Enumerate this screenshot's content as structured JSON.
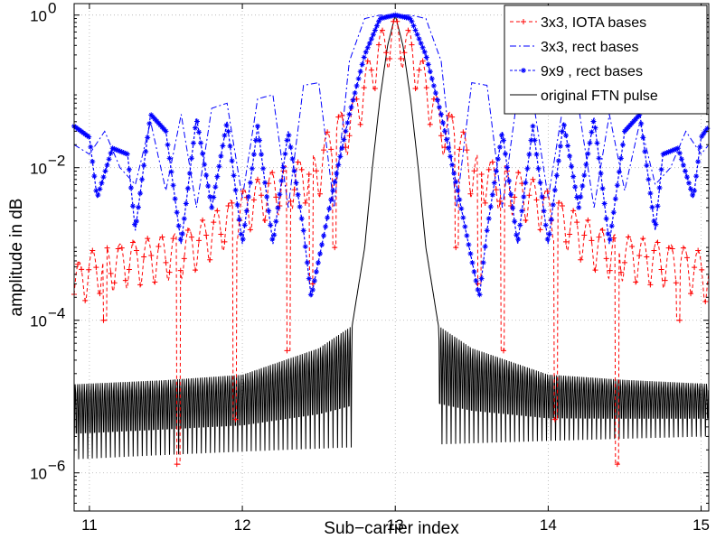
{
  "chart_data": {
    "type": "line",
    "title": "",
    "xlabel": "Sub−carrier index",
    "ylabel": "amplitude in dB",
    "xlim": [
      10.9,
      15.05
    ],
    "ylim_log10": [
      -6.5,
      0.15
    ],
    "y_scale": "log",
    "grid": true,
    "legend_position": "top-right",
    "x_ticks": [
      {
        "value": 11,
        "label": "11"
      },
      {
        "value": 12,
        "label": "12"
      },
      {
        "value": 13,
        "label": "13"
      },
      {
        "value": 14,
        "label": "14"
      },
      {
        "value": 15,
        "label": "15"
      }
    ],
    "y_ticks": [
      {
        "value": 1e-06,
        "base": "10",
        "exp": "−6"
      },
      {
        "value": 0.0001,
        "base": "10",
        "exp": "−4"
      },
      {
        "value": 0.01,
        "base": "10",
        "exp": "−2"
      },
      {
        "value": 1,
        "base": "10",
        "exp": "0"
      }
    ],
    "series": [
      {
        "name": "3x3, IOTA bases",
        "color": "#ff0000",
        "line_style": "dashed",
        "marker": "plus",
        "x": [
          10.9,
          11.0,
          11.1,
          11.2,
          11.3,
          11.4,
          11.5,
          11.6,
          11.7,
          11.8,
          11.9,
          12.0,
          12.1,
          12.2,
          12.3,
          12.4,
          12.5,
          12.6,
          12.7,
          12.8,
          12.9,
          13.0,
          13.1,
          13.2,
          13.3,
          13.4,
          13.5,
          13.6,
          13.7,
          13.8,
          13.9,
          14.0,
          14.1,
          14.2,
          14.3,
          14.4,
          14.5,
          14.6,
          14.7,
          14.8,
          14.9,
          15.0,
          15.05
        ],
        "values": [
          0.0005,
          0.0008,
          0.0009,
          0.001,
          0.0011,
          0.0012,
          0.0013,
          0.0014,
          0.0018,
          0.0025,
          0.0035,
          0.005,
          0.007,
          0.009,
          0.011,
          0.013,
          0.016,
          0.05,
          0.06,
          0.2,
          0.6,
          1.0,
          0.6,
          0.2,
          0.06,
          0.05,
          0.016,
          0.013,
          0.011,
          0.009,
          0.007,
          0.005,
          0.0035,
          0.0025,
          0.0018,
          0.0014,
          0.0013,
          0.0012,
          0.0011,
          0.001,
          0.0009,
          0.0008,
          0.0006
        ],
        "minima_x": [
          11.1,
          11.58,
          11.95,
          12.3,
          12.45,
          12.6,
          13.4,
          13.55,
          13.7,
          14.05,
          14.45,
          14.85
        ],
        "minima_values": [
          0.0001,
          1.3e-06,
          5e-06,
          4e-05,
          0.0003,
          0.0009,
          0.0009,
          0.0003,
          4e-05,
          5e-06,
          1.3e-06,
          0.0001
        ]
      },
      {
        "name": "3x3, rect bases",
        "color": "#0000ff",
        "line_style": "dashdot",
        "marker": "none",
        "x": [
          10.9,
          11.0,
          11.1,
          11.2,
          11.3,
          11.4,
          11.5,
          11.6,
          11.7,
          11.8,
          11.9,
          12.0,
          12.1,
          12.2,
          12.3,
          12.4,
          12.5,
          12.6,
          12.7,
          12.8,
          12.9,
          13.0,
          13.1,
          13.2,
          13.3,
          13.4,
          13.5,
          13.6,
          13.7,
          13.8,
          13.9,
          14.0,
          14.1,
          14.2,
          14.3,
          14.4,
          14.5,
          14.6,
          14.7,
          14.8,
          14.9,
          15.0,
          15.05
        ],
        "values": [
          0.02,
          0.015,
          0.03,
          0.01,
          0.006,
          0.04,
          0.005,
          0.05,
          0.003,
          0.06,
          0.07,
          0.004,
          0.08,
          0.09,
          0.003,
          0.12,
          0.13,
          0.003,
          0.25,
          0.9,
          1.0,
          1.0,
          1.0,
          0.9,
          0.25,
          0.003,
          0.13,
          0.12,
          0.003,
          0.09,
          0.08,
          0.004,
          0.07,
          0.06,
          0.003,
          0.05,
          0.005,
          0.04,
          0.006,
          0.01,
          0.03,
          0.015,
          0.02
        ]
      },
      {
        "name": "9x9 , rect bases",
        "color": "#0000ff",
        "line_style": "dashed",
        "marker": "star",
        "x": [
          10.9,
          11.0,
          11.05,
          11.15,
          11.25,
          11.3,
          11.4,
          11.5,
          11.6,
          11.7,
          11.8,
          11.9,
          12.0,
          12.1,
          12.2,
          12.3,
          12.4,
          12.45,
          12.6,
          12.7,
          12.8,
          12.9,
          13.0,
          13.1,
          13.2,
          13.3,
          13.4,
          13.55,
          13.6,
          13.7,
          13.8,
          13.9,
          14.0,
          14.1,
          14.2,
          14.3,
          14.4,
          14.5,
          14.6,
          14.7,
          14.75,
          14.85,
          14.95,
          15.0,
          15.05
        ],
        "values": [
          0.035,
          0.025,
          0.004,
          0.018,
          0.015,
          0.0015,
          0.05,
          0.03,
          0.001,
          0.045,
          0.003,
          0.04,
          0.001,
          0.035,
          0.001,
          0.03,
          0.0015,
          0.0002,
          0.006,
          0.05,
          0.3,
          0.9,
          1.0,
          0.9,
          0.3,
          0.05,
          0.006,
          0.0002,
          0.0015,
          0.03,
          0.001,
          0.035,
          0.001,
          0.04,
          0.003,
          0.045,
          0.001,
          0.03,
          0.05,
          0.0015,
          0.015,
          0.018,
          0.004,
          0.025,
          0.035
        ]
      },
      {
        "name": "original FTN pulse",
        "color": "#000000",
        "line_style": "solid",
        "marker": "none",
        "envelope_x": [
          10.9,
          11.5,
          12.0,
          12.5,
          12.72,
          12.8,
          12.85,
          12.9,
          12.95,
          13.0,
          13.05,
          13.1,
          13.15,
          13.2,
          13.28,
          13.5,
          14.0,
          14.5,
          15.05
        ],
        "envelope_values": [
          1.5e-05,
          1.7e-05,
          2e-05,
          4.5e-05,
          9e-05,
          0.0009,
          0.01,
          0.08,
          0.4,
          1.0,
          0.4,
          0.08,
          0.01,
          0.0009,
          9e-05,
          4.5e-05,
          2e-05,
          1.7e-05,
          1.5e-05
        ],
        "trough_values_range": [
          1.5e-06,
          3e-06
        ]
      }
    ]
  }
}
